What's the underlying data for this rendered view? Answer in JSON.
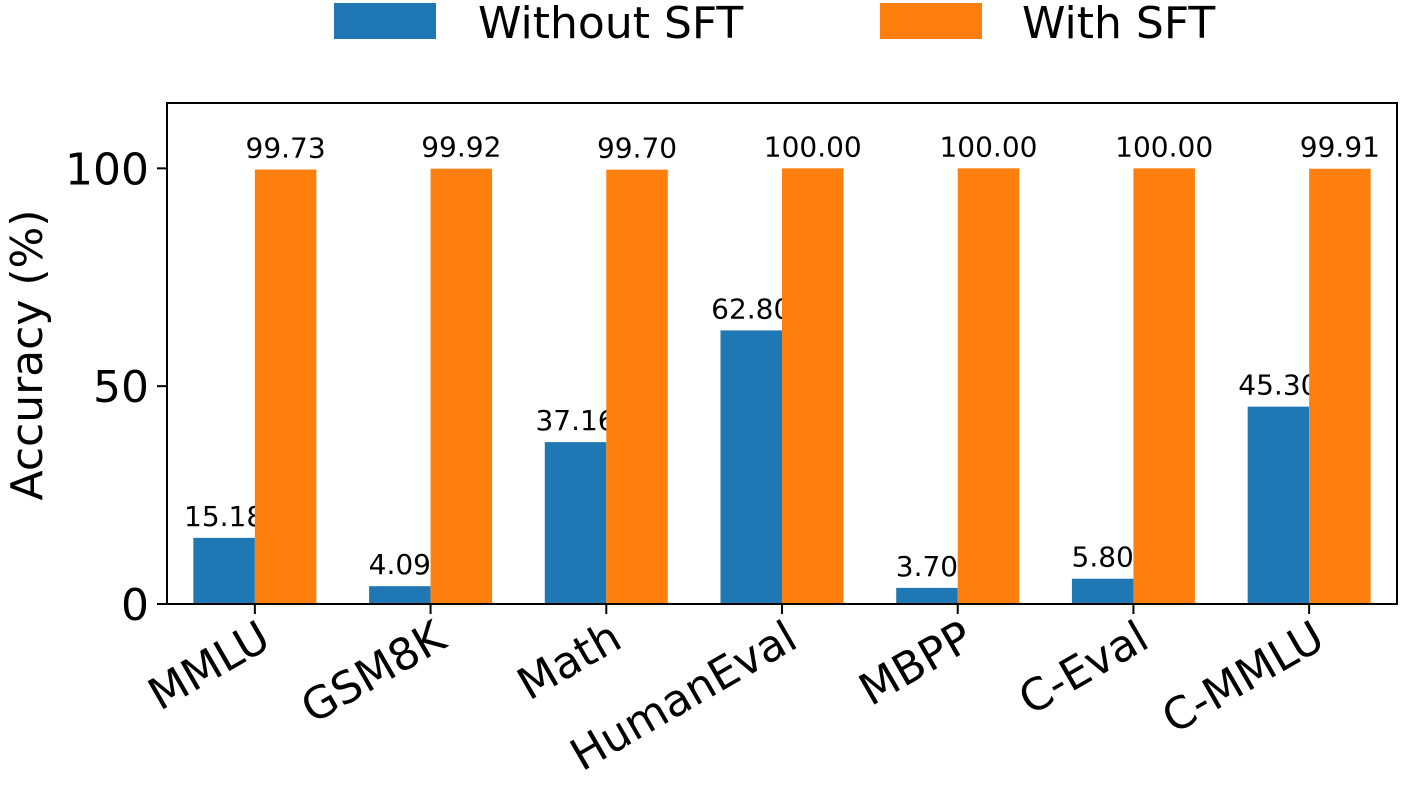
{
  "chart_data": {
    "type": "bar",
    "categories": [
      "MMLU",
      "GSM8K",
      "Math",
      "HumanEval",
      "MBPP",
      "C-Eval",
      "C-MMLU"
    ],
    "series": [
      {
        "name": "Without SFT",
        "color": "#1f77b4",
        "values": [
          15.18,
          4.09,
          37.16,
          62.8,
          3.7,
          5.8,
          45.3
        ],
        "labels": [
          "15.18",
          "4.09",
          "37.16",
          "62.80",
          "3.70",
          "5.80",
          "45.30"
        ]
      },
      {
        "name": "With SFT",
        "color": "#ff7f0e",
        "values": [
          99.73,
          99.92,
          99.7,
          100.0,
          100.0,
          100.0,
          99.91
        ],
        "labels": [
          "99.73",
          "99.92",
          "99.70",
          "100.00",
          "100.00",
          "100.00",
          "99.91"
        ]
      }
    ],
    "title": "",
    "xlabel": "",
    "ylabel": "Accuracy (%)",
    "ylim": [
      0,
      115
    ],
    "yticks": [
      0,
      50,
      100
    ],
    "ytick_labels": [
      "0",
      "50",
      "100"
    ],
    "grid": false,
    "legend_position": "top-center"
  }
}
